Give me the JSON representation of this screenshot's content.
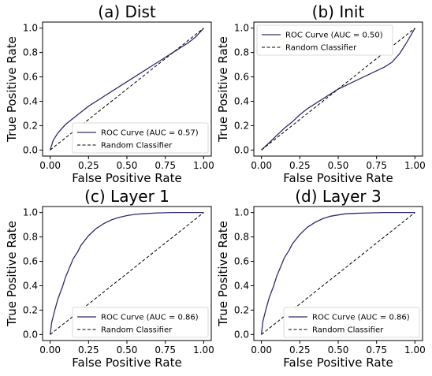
{
  "chart_data": [
    {
      "type": "line",
      "title": "(a) Dist",
      "xlabel": "False Positive Rate",
      "ylabel": "True Positive Rate",
      "xlim": [
        0,
        1
      ],
      "ylim": [
        0,
        1
      ],
      "xticks": [
        "0.00",
        "0.25",
        "0.50",
        "0.75",
        "1.00"
      ],
      "yticks": [
        "0.0",
        "0.2",
        "0.4",
        "0.6",
        "0.8",
        "1.0"
      ],
      "legend_position": "bottom-right",
      "series": [
        {
          "name": "ROC Curve (AUC = 0.57)",
          "style": "solid",
          "color": "#2d2d6e",
          "x": [
            0,
            0.02,
            0.05,
            0.1,
            0.15,
            0.2,
            0.25,
            0.3,
            0.4,
            0.5,
            0.6,
            0.7,
            0.8,
            0.9,
            0.95,
            1.0
          ],
          "y": [
            0,
            0.08,
            0.14,
            0.21,
            0.26,
            0.31,
            0.36,
            0.4,
            0.48,
            0.56,
            0.64,
            0.72,
            0.8,
            0.88,
            0.93,
            1.0
          ]
        },
        {
          "name": "Random Classifier",
          "style": "dashed",
          "color": "#000000",
          "x": [
            0,
            1
          ],
          "y": [
            0,
            1
          ]
        }
      ]
    },
    {
      "type": "line",
      "title": "(b) Init",
      "xlabel": "False Positive Rate",
      "ylabel": "True Positive Rate",
      "xlim": [
        0,
        1
      ],
      "ylim": [
        0,
        1
      ],
      "xticks": [
        "0.00",
        "0.25",
        "0.50",
        "0.75",
        "1.00"
      ],
      "yticks": [
        "0.0",
        "0.2",
        "0.4",
        "0.6",
        "0.8",
        "1.0"
      ],
      "legend_position": "top-left",
      "series": [
        {
          "name": "ROC Curve (AUC = 0.50)",
          "style": "solid",
          "color": "#2d2d6e",
          "x": [
            0,
            0.05,
            0.1,
            0.15,
            0.2,
            0.25,
            0.3,
            0.35,
            0.4,
            0.45,
            0.5,
            0.55,
            0.6,
            0.65,
            0.7,
            0.75,
            0.8,
            0.85,
            0.9,
            0.95,
            1.0
          ],
          "y": [
            0,
            0.06,
            0.12,
            0.18,
            0.23,
            0.29,
            0.34,
            0.38,
            0.42,
            0.46,
            0.5,
            0.53,
            0.56,
            0.59,
            0.62,
            0.65,
            0.68,
            0.72,
            0.79,
            0.89,
            1.0
          ]
        },
        {
          "name": "Random Classifier",
          "style": "dashed",
          "color": "#000000",
          "x": [
            0,
            1
          ],
          "y": [
            0,
            1
          ]
        }
      ]
    },
    {
      "type": "line",
      "title": "(c) Layer 1",
      "xlabel": "False Positive Rate",
      "ylabel": "True Positive Rate",
      "xlim": [
        0,
        1
      ],
      "ylim": [
        0,
        1
      ],
      "xticks": [
        "0.00",
        "0.25",
        "0.50",
        "0.75",
        "1.00"
      ],
      "yticks": [
        "0.0",
        "0.2",
        "0.4",
        "0.6",
        "0.8",
        "1.0"
      ],
      "legend_position": "bottom-right",
      "series": [
        {
          "name": "ROC Curve (AUC = 0.86)",
          "style": "solid",
          "color": "#2d2d6e",
          "x": [
            0,
            0.01,
            0.03,
            0.05,
            0.08,
            0.1,
            0.13,
            0.15,
            0.18,
            0.2,
            0.25,
            0.3,
            0.35,
            0.4,
            0.45,
            0.5,
            0.55,
            0.6,
            0.7,
            0.8,
            1.0
          ],
          "y": [
            0,
            0.1,
            0.2,
            0.29,
            0.39,
            0.47,
            0.56,
            0.62,
            0.68,
            0.73,
            0.81,
            0.87,
            0.91,
            0.94,
            0.96,
            0.975,
            0.985,
            0.99,
            0.997,
            1.0,
            1.0
          ]
        },
        {
          "name": "Random Classifier",
          "style": "dashed",
          "color": "#000000",
          "x": [
            0,
            1
          ],
          "y": [
            0,
            1
          ]
        }
      ]
    },
    {
      "type": "line",
      "title": "(d) Layer 3",
      "xlabel": "False Positive Rate",
      "ylabel": "True Positive Rate",
      "xlim": [
        0,
        1
      ],
      "ylim": [
        0,
        1
      ],
      "xticks": [
        "0.00",
        "0.25",
        "0.50",
        "0.75",
        "1.00"
      ],
      "yticks": [
        "0.0",
        "0.2",
        "0.4",
        "0.6",
        "0.8",
        "1.0"
      ],
      "legend_position": "bottom-right",
      "series": [
        {
          "name": "ROC Curve (AUC = 0.86)",
          "style": "solid",
          "color": "#2d2d6e",
          "x": [
            0,
            0.01,
            0.03,
            0.05,
            0.08,
            0.1,
            0.13,
            0.15,
            0.18,
            0.2,
            0.25,
            0.3,
            0.35,
            0.4,
            0.45,
            0.5,
            0.55,
            0.6,
            0.7,
            0.8,
            1.0
          ],
          "y": [
            0,
            0.11,
            0.21,
            0.3,
            0.4,
            0.48,
            0.57,
            0.63,
            0.69,
            0.74,
            0.82,
            0.88,
            0.92,
            0.95,
            0.97,
            0.98,
            0.99,
            0.993,
            0.997,
            1.0,
            1.0
          ]
        },
        {
          "name": "Random Classifier",
          "style": "dashed",
          "color": "#000000",
          "x": [
            0,
            1
          ],
          "y": [
            0,
            1
          ]
        }
      ]
    }
  ]
}
